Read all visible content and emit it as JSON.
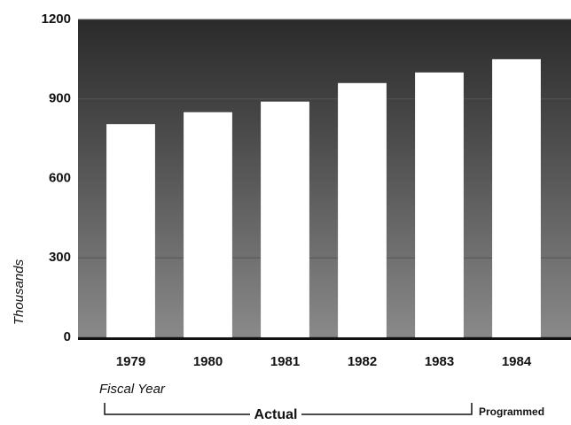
{
  "chart_data": {
    "type": "bar",
    "y_label": "Thousands",
    "x_label": "Fiscal Year",
    "annotations": [
      "Actual",
      "Programmed"
    ],
    "categories": [
      "1979",
      "1980",
      "1981",
      "1982",
      "1983",
      "1984"
    ],
    "values": [
      805,
      850,
      890,
      960,
      1000,
      1050
    ],
    "color": "#ffffff",
    "ylim": [
      0,
      1200
    ],
    "yticks": [
      0,
      300,
      600,
      900,
      1200
    ],
    "grid": true
  }
}
